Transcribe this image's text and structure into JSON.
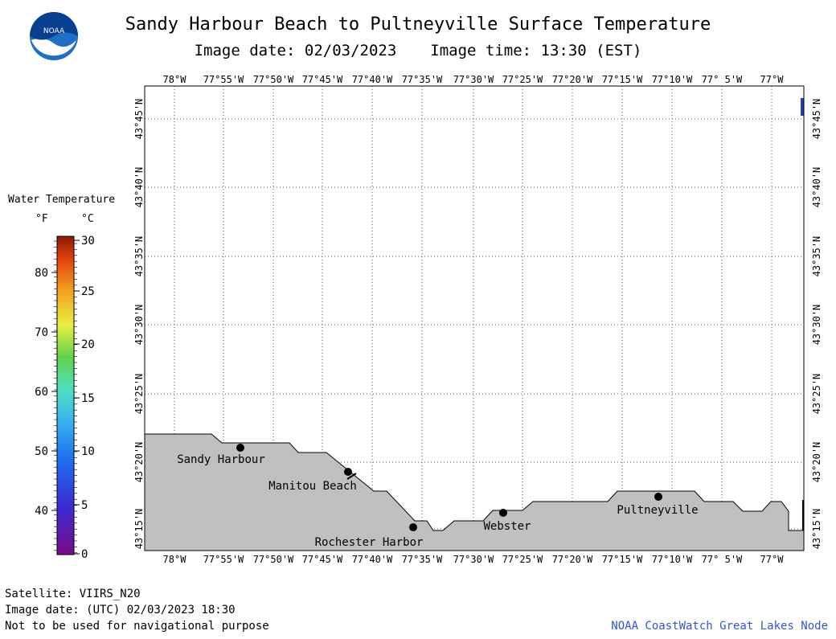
{
  "header": {
    "title": "Sandy Harbour Beach to Pultneyville Surface Temperature",
    "image_date": "Image date: 02/03/2023",
    "image_time": "Image time: 13:30 (EST)",
    "logo_text": "NOAA"
  },
  "legend": {
    "title": "Water Temperature",
    "unit_f": "°F",
    "unit_c": "°C",
    "f_ticks": [
      "80",
      "70",
      "60",
      "50",
      "40"
    ],
    "c_ticks": [
      "30",
      "25",
      "20",
      "15",
      "10",
      "5",
      "0"
    ],
    "colors": [
      "#ffffff"
    ]
  },
  "map": {
    "lon_labels": [
      "78°W",
      "77°55'W",
      "77°50'W",
      "77°45'W",
      "77°40'W",
      "77°35'W",
      "77°30'W",
      "77°25'W",
      "77°20'W",
      "77°15'W",
      "77°10'W",
      "77° 5'W",
      "77°W"
    ],
    "lat_labels": [
      "43°45'N",
      "43°40'N",
      "43°35'N",
      "43°30'N",
      "43°25'N",
      "43°20'N",
      "43°15'N"
    ],
    "places": [
      {
        "name": "Sandy Harbour"
      },
      {
        "name": "Manitou Beach"
      },
      {
        "name": "Rochester Harbor"
      },
      {
        "name": "Webster"
      },
      {
        "name": "Pultneyville"
      }
    ],
    "land_color": "#c0c0c0",
    "water_color": "#ffffff"
  },
  "footer": {
    "satellite": "Satellite: VIIRS_N20",
    "utc_date": "Image date: (UTC) 02/03/2023  18:30",
    "disclaimer": "Not to be used for navigational purpose",
    "credit": "NOAA CoastWatch Great Lakes Node"
  }
}
